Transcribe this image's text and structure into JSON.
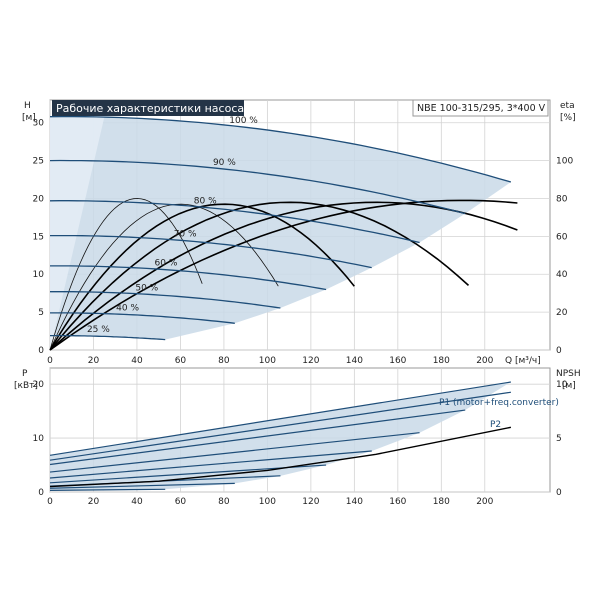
{
  "title": "Рабочие характеристики насоса",
  "model": "NBE 100-315/295, 3*400 V",
  "axes": {
    "h_label": "H",
    "h_unit": "[м]",
    "eta_label": "eta",
    "eta_unit": "[%]",
    "q_label": "Q [м³/ч]",
    "p_label": "P",
    "p_unit": "[кВт]",
    "npsh_label": "NPSH",
    "npsh_unit": "[м]"
  },
  "legend": {
    "p1": "P1 (motor+freq.converter)",
    "p2": "P2"
  },
  "chart_data": [
    {
      "type": "line",
      "x_ticks": [
        0,
        20,
        40,
        60,
        80,
        100,
        120,
        140,
        160,
        180,
        200
      ],
      "xlim": [
        0,
        230
      ],
      "h_ticks": [
        0,
        5,
        10,
        15,
        20,
        25,
        30
      ],
      "ylim": [
        0,
        33
      ],
      "eta_ticks": [
        0,
        20,
        40,
        60,
        80,
        100
      ],
      "eta_lim": [
        0,
        132
      ],
      "grid": true,
      "series": [
        {
          "name": "100 %",
          "shutoff": 30.8,
          "qmax": 212
        },
        {
          "name": "90 %",
          "shutoff": 25,
          "qmax": 191
        },
        {
          "name": "80 %",
          "shutoff": 19.7,
          "qmax": 170
        },
        {
          "name": "70 %",
          "shutoff": 15.1,
          "qmax": 148
        },
        {
          "name": "60 %",
          "shutoff": 11.1,
          "qmax": 127
        },
        {
          "name": "50 %",
          "shutoff": 7.7,
          "qmax": 106
        },
        {
          "name": "40 %",
          "shutoff": 4.9,
          "qmax": 85
        },
        {
          "name": "25 %",
          "shutoff": 1.9,
          "qmax": 53
        }
      ],
      "efficiency_peaks": [
        {
          "q": 40,
          "eta": 80
        },
        {
          "q": 60,
          "eta": 77
        },
        {
          "q": 80,
          "eta": 77
        },
        {
          "q": 110,
          "eta": 78
        },
        {
          "q": 150,
          "eta": 78
        },
        {
          "q": 190,
          "eta": 79
        }
      ]
    },
    {
      "type": "line",
      "x_ticks": [
        0,
        20,
        40,
        60,
        80,
        100,
        120,
        140,
        160,
        180,
        200
      ],
      "xlim": [
        0,
        230
      ],
      "p_ticks": [
        0,
        10,
        20
      ],
      "ylim": [
        0,
        23
      ],
      "npsh_ticks": [
        0,
        5,
        10
      ],
      "npsh_lim": [
        0,
        11.5
      ],
      "grid": true,
      "p1": [
        {
          "speed": "100 %",
          "start": 6.8,
          "end": 20.4,
          "qmax": 212
        },
        {
          "speed": "90 %",
          "start": 5.1,
          "end": 15.2,
          "qmax": 191
        },
        {
          "speed": "80 %",
          "start": 3.7,
          "end": 11,
          "qmax": 170
        },
        {
          "speed": "70 %",
          "start": 2.6,
          "end": 7.6,
          "qmax": 148
        },
        {
          "speed": "60 %",
          "start": 1.7,
          "end": 5,
          "qmax": 127
        },
        {
          "speed": "50 %",
          "start": 1.1,
          "end": 3,
          "qmax": 106
        },
        {
          "speed": "40 %",
          "start": 0.7,
          "end": 1.6,
          "qmax": 85
        },
        {
          "speed": "25 %",
          "start": 0.3,
          "end": 0.5,
          "qmax": 53
        }
      ],
      "p2_100": {
        "start": 5.9,
        "end": 18.5,
        "qmax": 212
      },
      "npsh": [
        [
          0,
          0.5
        ],
        [
          50,
          1
        ],
        [
          100,
          2
        ],
        [
          150,
          3.5
        ],
        [
          212,
          6
        ]
      ]
    }
  ]
}
